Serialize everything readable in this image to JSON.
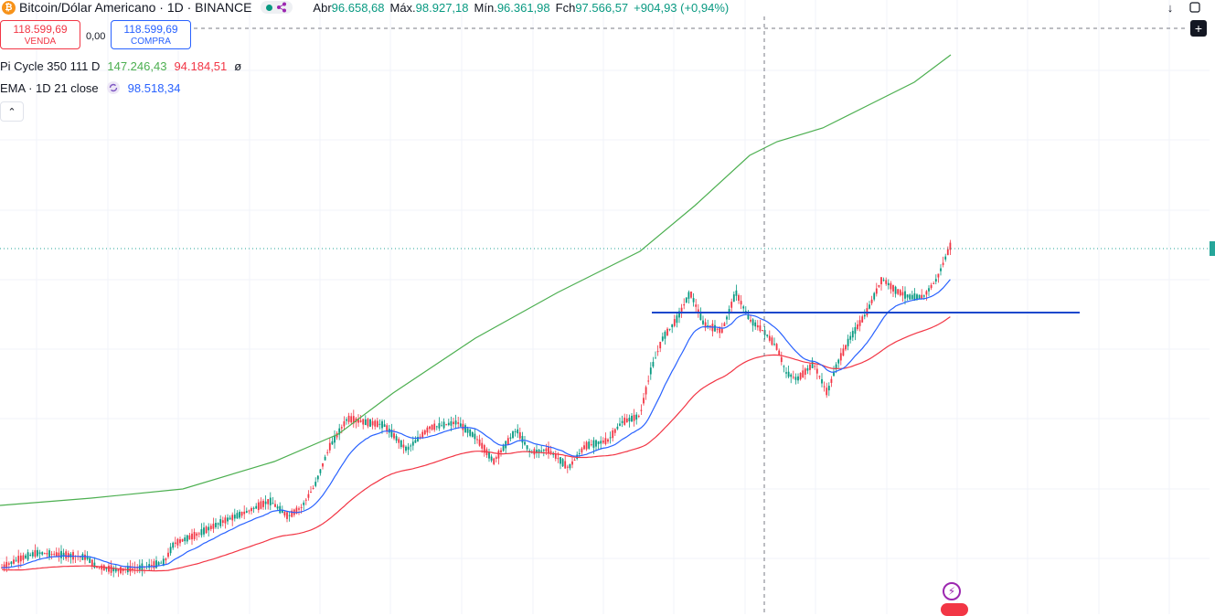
{
  "header": {
    "symbol_title": "Bitcoin/Dólar Americano · 1D · BINANCE",
    "coin_glyph": "₿",
    "ohlc": [
      {
        "label": "Abr",
        "value": "96.658,68"
      },
      {
        "label": "Máx.",
        "value": "98.927,18"
      },
      {
        "label": "Mín.",
        "value": "96.361,98"
      },
      {
        "label": "Fch",
        "value": "97.566,57"
      }
    ],
    "change": "+904,93 (+0,94%)"
  },
  "trade": {
    "sell_price": "118.599,69",
    "sell_label": "VENDA",
    "spread": "0,00",
    "buy_price": "118.599,69",
    "buy_label": "COMPRA"
  },
  "indicators": {
    "pi_cycle": {
      "label": "Pi Cycle 350 111 D",
      "value_long": "147.246,43",
      "value_short": "94.184,51",
      "extra": "ø",
      "color_long": "#4caf50",
      "color_short": "#f23645"
    },
    "ema": {
      "label": "EMA · 1D 21 close",
      "value": "98.518,34",
      "color": "#2962ff"
    }
  },
  "icons": [
    "bitcoin-icon",
    "share-icon",
    "arrow-down-icon",
    "fullscreen-icon",
    "plus-icon",
    "chevron-up-icon",
    "lightning-icon",
    "flag-icon"
  ],
  "chart_data": {
    "type": "candlestick",
    "description_series": [
      {
        "name": "Pi Cycle 350",
        "color": "#4caf50"
      },
      {
        "name": "Pi Cycle 111",
        "color": "#f23645"
      },
      {
        "name": "EMA 21",
        "color": "#2962ff"
      }
    ],
    "horizontal_level_color": "#1848cc",
    "last_price_line_color": "#26a69a",
    "crosshair_color": "#787b86"
  }
}
